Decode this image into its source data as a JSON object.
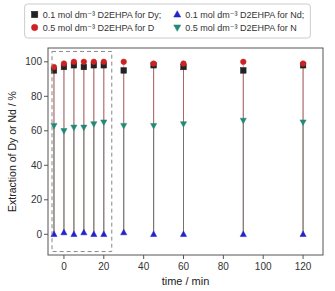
{
  "chart_data": {
    "type": "stem",
    "xlabel": "time / min",
    "ylabel": "Extraction of Dy or Nd / %",
    "x": [
      -5,
      0,
      5,
      10,
      15,
      20,
      30,
      45,
      60,
      90,
      120
    ],
    "xlim": [
      -8,
      130
    ],
    "ylim": [
      -12,
      108
    ],
    "xticks": [
      0,
      20,
      40,
      60,
      80,
      100,
      120
    ],
    "yticks": [
      0,
      20,
      40,
      60,
      80,
      100
    ],
    "box": {
      "x0": -6,
      "x1": 24,
      "y0": -10,
      "y1": 106
    },
    "legend": "top",
    "series": [
      {
        "name": "0.1 mol dm⁻³ D2EHPA for Dy;",
        "color": "#222222",
        "marker": "square",
        "values": [
          95,
          97,
          98,
          97,
          98,
          98,
          95,
          98,
          97,
          95,
          98
        ]
      },
      {
        "name": "0.5 mol dm⁻³ D2EHPA for D",
        "color": "#cc2222",
        "marker": "circle",
        "values": [
          97,
          99,
          100,
          100,
          100,
          100,
          100,
          99,
          99,
          100,
          99
        ]
      },
      {
        "name": "0.1 mol dm⁻³ D2EHPA for Nd;",
        "color": "#2222cc",
        "marker": "triangle-up",
        "values": [
          0,
          1,
          0,
          1,
          0,
          0,
          1,
          0,
          0,
          0,
          0
        ]
      },
      {
        "name": "0.5 mol dm⁻³ D2EHPA for N",
        "color": "#228877",
        "marker": "triangle-down",
        "values": [
          63,
          60,
          62,
          62,
          64,
          65,
          63,
          63,
          64,
          66,
          65
        ]
      }
    ]
  }
}
